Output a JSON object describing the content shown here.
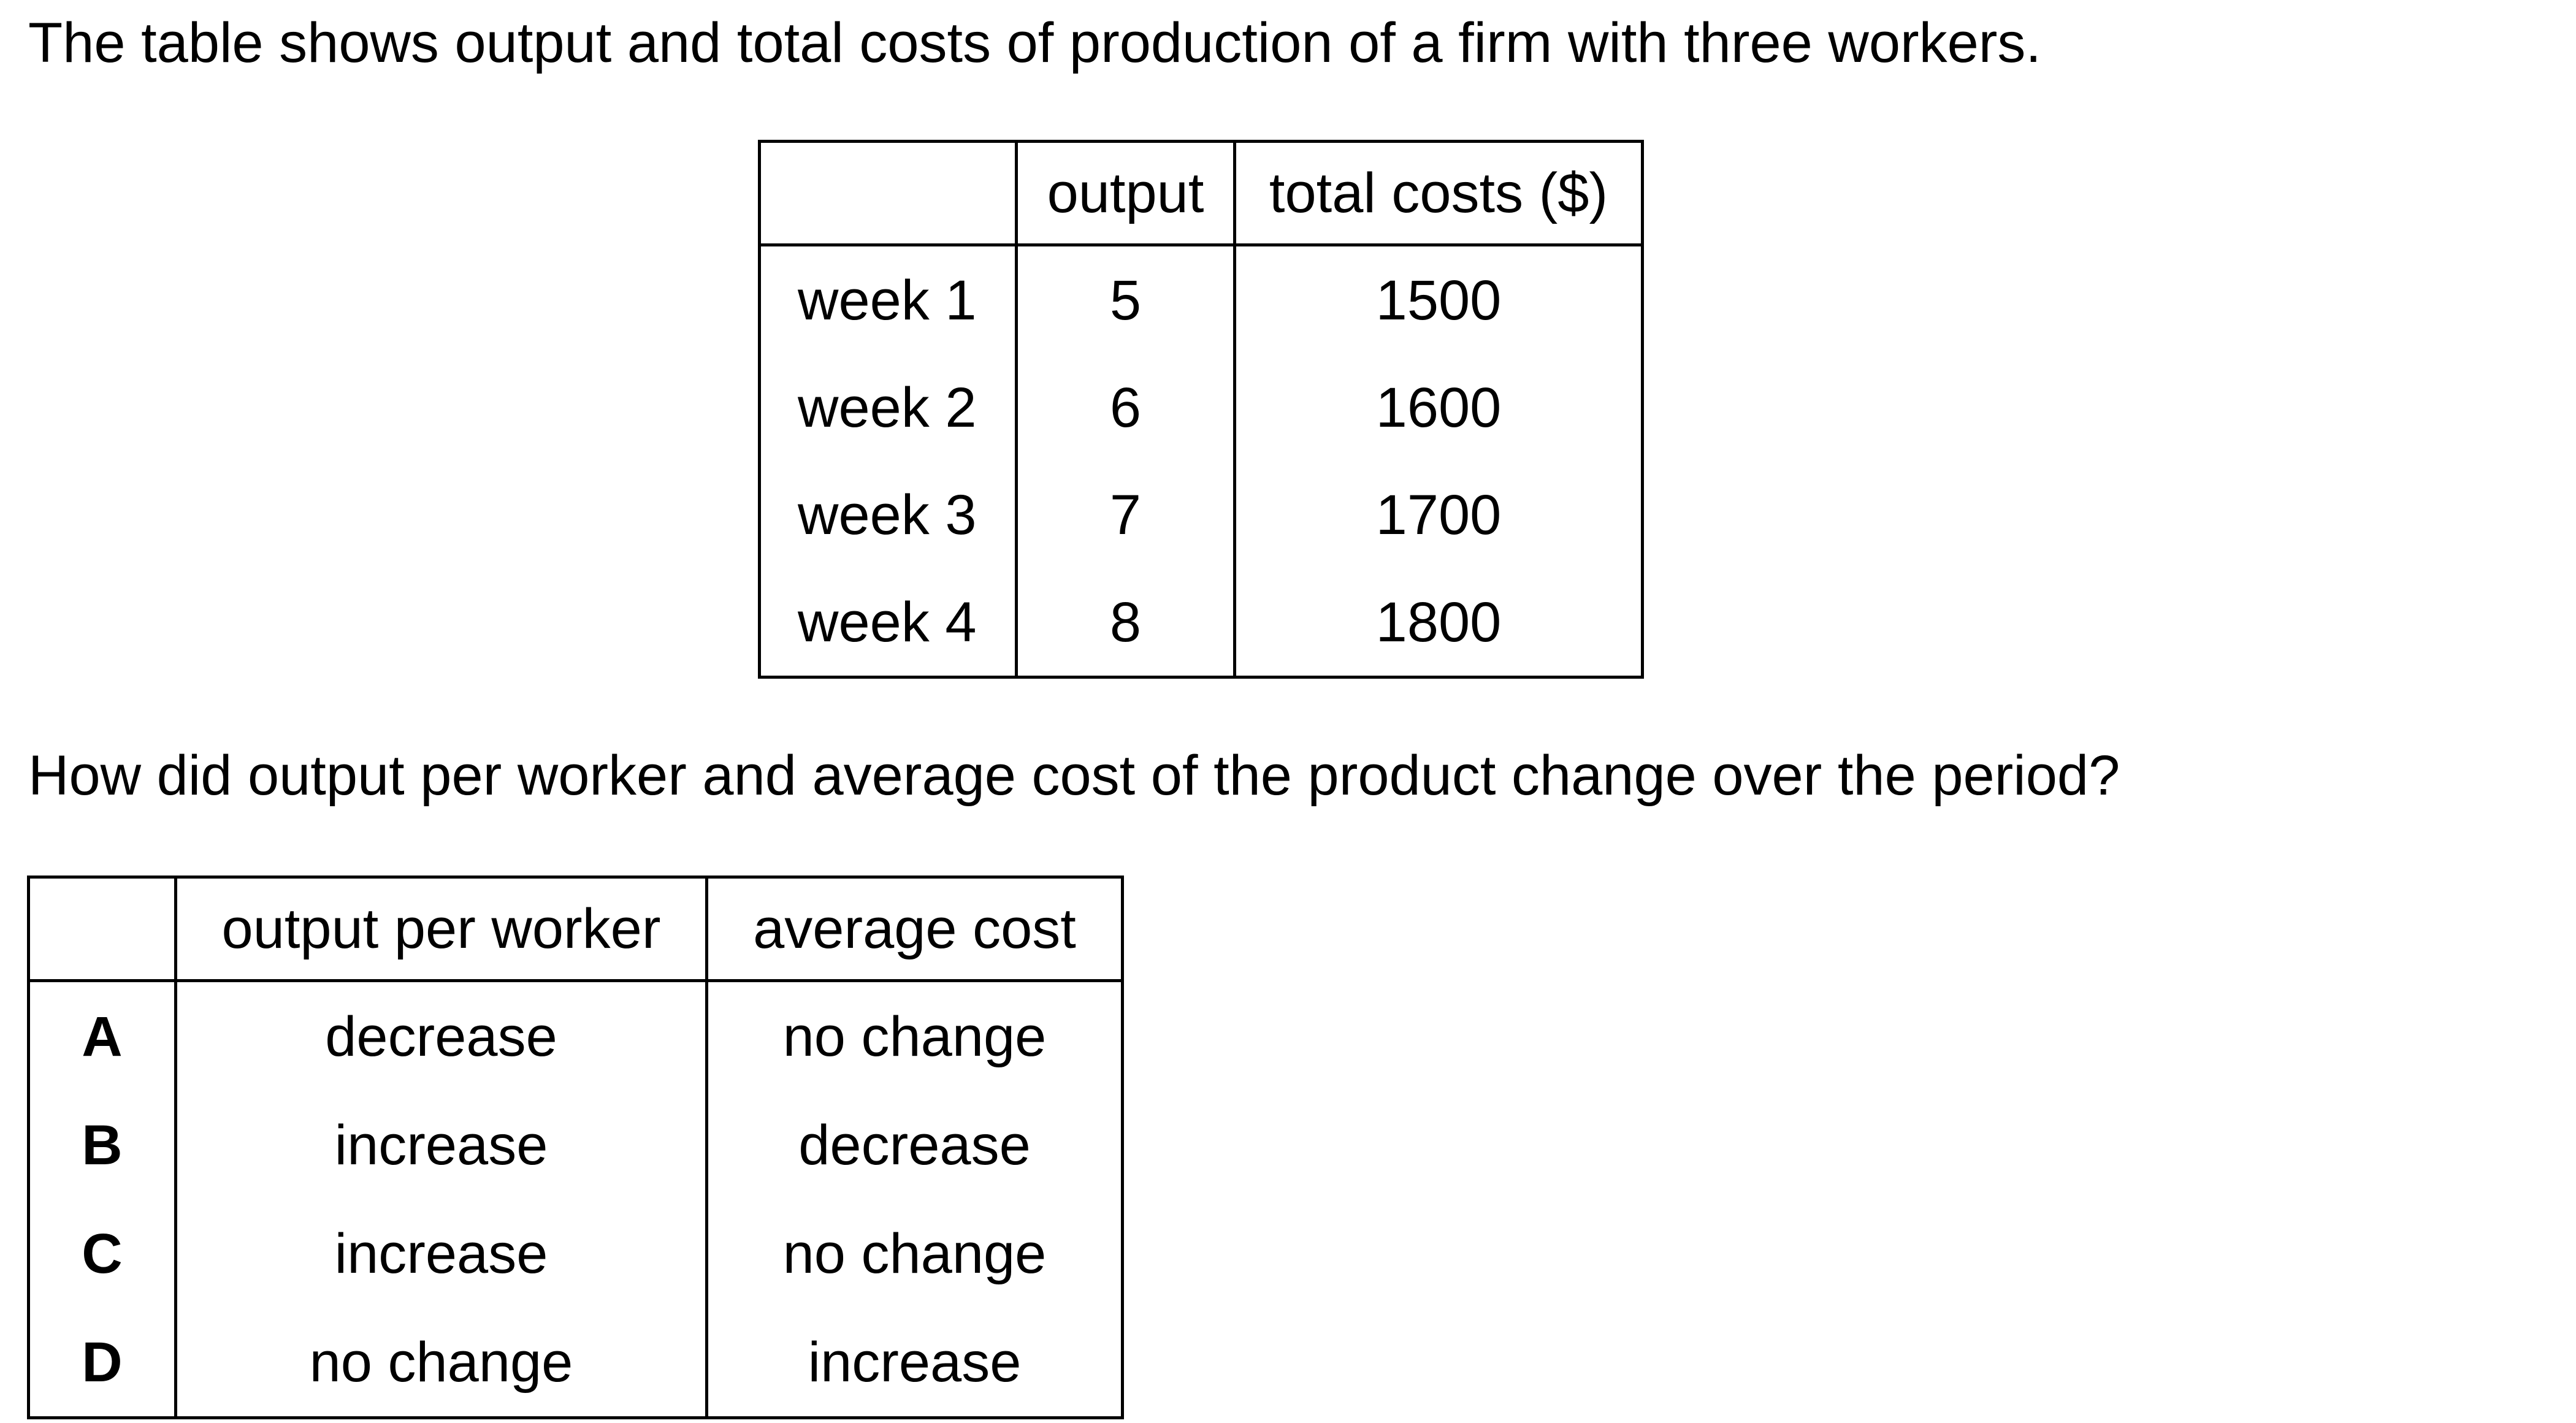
{
  "intro_text": "The table shows output and total costs of production of a firm with three workers.",
  "data_table": {
    "headers": [
      "",
      "output",
      "total costs ($)"
    ],
    "rows": [
      {
        "week": "week 1",
        "output": "5",
        "total_costs": "1500"
      },
      {
        "week": "week 2",
        "output": "6",
        "total_costs": "1600"
      },
      {
        "week": "week 3",
        "output": "7",
        "total_costs": "1700"
      },
      {
        "week": "week 4",
        "output": "8",
        "total_costs": "1800"
      }
    ]
  },
  "question_text": "How did output per worker and average cost of the product change over the period?",
  "options_table": {
    "headers": [
      "",
      "output per worker",
      "average cost"
    ],
    "rows": [
      {
        "letter": "A",
        "output_per_worker": "decrease",
        "average_cost": "no change"
      },
      {
        "letter": "B",
        "output_per_worker": "increase",
        "average_cost": "decrease"
      },
      {
        "letter": "C",
        "output_per_worker": "increase",
        "average_cost": "no change"
      },
      {
        "letter": "D",
        "output_per_worker": "no change",
        "average_cost": "increase"
      }
    ]
  }
}
